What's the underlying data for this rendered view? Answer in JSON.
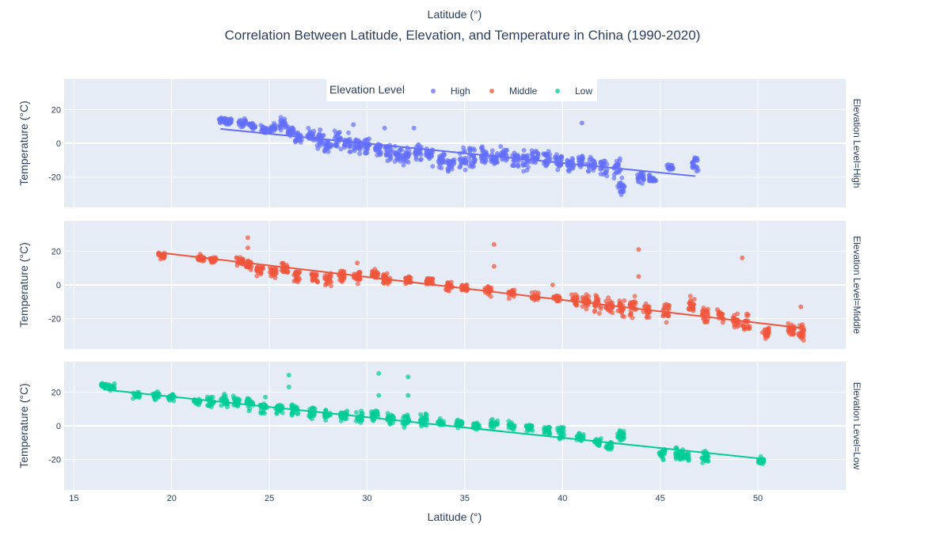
{
  "chart_data": {
    "type": "scatter",
    "title": "Correlation Between Latitude, Elevation, and Temperature in China (1990-2020)",
    "top_xlabel": "Latitude (°)",
    "xlabel": "Latitude (°)",
    "ylabel": "Temperature (°C)",
    "xlim": [
      14.5,
      54.5
    ],
    "xticks": [
      15,
      20,
      25,
      30,
      35,
      40,
      45,
      50
    ],
    "ylim": [
      -38,
      38
    ],
    "yticks": [
      -20,
      0,
      20
    ],
    "grid": true,
    "legend": {
      "title": "Elevation Level",
      "placement": "top-center",
      "entries": [
        "High",
        "Middle",
        "Low"
      ]
    },
    "colors": {
      "High": "#636efa",
      "Middle": "#EF553B",
      "Low": "#00cc96"
    },
    "facets": [
      {
        "label": "Elevation Level=High",
        "series_name": "High",
        "trend": {
          "x": [
            22.5,
            46.8
          ],
          "y": [
            8.5,
            -19.5
          ]
        },
        "clusters": [
          {
            "x": 22.6,
            "y": 14,
            "s": 1.5
          },
          {
            "x": 22.9,
            "y": 13,
            "s": 1.5
          },
          {
            "x": 23.6,
            "y": 12,
            "s": 2
          },
          {
            "x": 24.1,
            "y": 10,
            "s": 2
          },
          {
            "x": 24.7,
            "y": 8,
            "s": 2
          },
          {
            "x": 25.2,
            "y": 9,
            "s": 2
          },
          {
            "x": 25.7,
            "y": 11,
            "s": 3
          },
          {
            "x": 26.1,
            "y": 7,
            "s": 2
          },
          {
            "x": 26.5,
            "y": 3,
            "s": 3
          },
          {
            "x": 27.1,
            "y": 5,
            "s": 3
          },
          {
            "x": 27.6,
            "y": 1,
            "s": 4
          },
          {
            "x": 28.0,
            "y": -2,
            "s": 3
          },
          {
            "x": 28.5,
            "y": 2,
            "s": 4
          },
          {
            "x": 29.0,
            "y": 0,
            "s": 4
          },
          {
            "x": 29.5,
            "y": -1,
            "s": 5
          },
          {
            "x": 30.0,
            "y": -2,
            "s": 4
          },
          {
            "x": 30.6,
            "y": -3,
            "s": 4
          },
          {
            "x": 31.1,
            "y": -5,
            "s": 4
          },
          {
            "x": 31.6,
            "y": -7,
            "s": 4
          },
          {
            "x": 32.0,
            "y": -8,
            "s": 4
          },
          {
            "x": 32.6,
            "y": -6,
            "s": 4
          },
          {
            "x": 33.2,
            "y": -8,
            "s": 5
          },
          {
            "x": 33.8,
            "y": -10,
            "s": 4
          },
          {
            "x": 34.3,
            "y": -12,
            "s": 4
          },
          {
            "x": 34.9,
            "y": -10,
            "s": 5
          },
          {
            "x": 35.4,
            "y": -8,
            "s": 5
          },
          {
            "x": 36.0,
            "y": -7,
            "s": 4
          },
          {
            "x": 36.5,
            "y": -9,
            "s": 4
          },
          {
            "x": 37.0,
            "y": -6,
            "s": 4
          },
          {
            "x": 37.6,
            "y": -9,
            "s": 5
          },
          {
            "x": 38.1,
            "y": -10,
            "s": 5
          },
          {
            "x": 38.6,
            "y": -8,
            "s": 4
          },
          {
            "x": 39.2,
            "y": -10,
            "s": 4
          },
          {
            "x": 39.8,
            "y": -11,
            "s": 4
          },
          {
            "x": 40.4,
            "y": -12,
            "s": 4
          },
          {
            "x": 41.0,
            "y": -11,
            "s": 4
          },
          {
            "x": 41.5,
            "y": -13,
            "s": 4
          },
          {
            "x": 42.1,
            "y": -14,
            "s": 4
          },
          {
            "x": 42.8,
            "y": -15,
            "s": 4
          },
          {
            "x": 43.0,
            "y": -26,
            "s": 4
          },
          {
            "x": 44.0,
            "y": -20,
            "s": 3
          },
          {
            "x": 44.6,
            "y": -21,
            "s": 2
          },
          {
            "x": 45.5,
            "y": -14,
            "s": 2
          },
          {
            "x": 46.8,
            "y": -12,
            "s": 3
          }
        ],
        "outliers": [
          {
            "x": 41.0,
            "y": 12
          },
          {
            "x": 30.9,
            "y": 9
          },
          {
            "x": 32.4,
            "y": 9
          },
          {
            "x": 29.3,
            "y": 11
          },
          {
            "x": 27.6,
            "y": 8
          }
        ]
      },
      {
        "label": "Elevation Level=Middle",
        "series_name": "Middle",
        "trend": {
          "x": [
            19.5,
            52.2
          ],
          "y": [
            19,
            -25.5
          ]
        },
        "clusters": [
          {
            "x": 19.5,
            "y": 17,
            "s": 2
          },
          {
            "x": 21.5,
            "y": 16,
            "s": 1.5
          },
          {
            "x": 22.1,
            "y": 15,
            "s": 1.5
          },
          {
            "x": 23.5,
            "y": 14,
            "s": 2
          },
          {
            "x": 24.0,
            "y": 12,
            "s": 2
          },
          {
            "x": 24.5,
            "y": 9,
            "s": 3
          },
          {
            "x": 25.2,
            "y": 8,
            "s": 3
          },
          {
            "x": 25.8,
            "y": 9,
            "s": 3
          },
          {
            "x": 26.4,
            "y": 6,
            "s": 3
          },
          {
            "x": 27.3,
            "y": 5,
            "s": 3
          },
          {
            "x": 28.0,
            "y": 4,
            "s": 3
          },
          {
            "x": 28.7,
            "y": 6,
            "s": 3
          },
          {
            "x": 29.5,
            "y": 5,
            "s": 3
          },
          {
            "x": 30.4,
            "y": 6,
            "s": 3
          },
          {
            "x": 31.0,
            "y": 4,
            "s": 3
          },
          {
            "x": 32.1,
            "y": 3,
            "s": 2
          },
          {
            "x": 33.2,
            "y": 2,
            "s": 2
          },
          {
            "x": 34.2,
            "y": -1,
            "s": 2
          },
          {
            "x": 35.0,
            "y": -2,
            "s": 2
          },
          {
            "x": 36.2,
            "y": -3,
            "s": 3
          },
          {
            "x": 37.4,
            "y": -5,
            "s": 2
          },
          {
            "x": 38.6,
            "y": -7,
            "s": 2
          },
          {
            "x": 39.7,
            "y": -8,
            "s": 2
          },
          {
            "x": 40.6,
            "y": -9,
            "s": 3
          },
          {
            "x": 41.2,
            "y": -10,
            "s": 4
          },
          {
            "x": 41.8,
            "y": -11,
            "s": 4
          },
          {
            "x": 42.4,
            "y": -12,
            "s": 4
          },
          {
            "x": 43.0,
            "y": -14,
            "s": 4
          },
          {
            "x": 43.6,
            "y": -13,
            "s": 5
          },
          {
            "x": 44.3,
            "y": -15,
            "s": 4
          },
          {
            "x": 45.3,
            "y": -16,
            "s": 4
          },
          {
            "x": 46.6,
            "y": -12,
            "s": 4
          },
          {
            "x": 47.3,
            "y": -18,
            "s": 4
          },
          {
            "x": 48.1,
            "y": -19,
            "s": 4
          },
          {
            "x": 48.9,
            "y": -21,
            "s": 4
          },
          {
            "x": 49.4,
            "y": -22,
            "s": 4
          },
          {
            "x": 50.4,
            "y": -28,
            "s": 3
          },
          {
            "x": 51.7,
            "y": -26,
            "s": 3
          },
          {
            "x": 52.2,
            "y": -28,
            "s": 4
          }
        ],
        "outliers": [
          {
            "x": 23.9,
            "y": 28
          },
          {
            "x": 23.9,
            "y": 22
          },
          {
            "x": 36.5,
            "y": 24
          },
          {
            "x": 36.5,
            "y": 11
          },
          {
            "x": 43.9,
            "y": 21
          },
          {
            "x": 43.9,
            "y": 5
          },
          {
            "x": 49.2,
            "y": 16
          },
          {
            "x": 52.2,
            "y": -13
          },
          {
            "x": 29.5,
            "y": 13
          },
          {
            "x": 39.5,
            "y": 0
          }
        ]
      },
      {
        "label": "Elevation Level=Low",
        "series_name": "Low",
        "trend": {
          "x": [
            16.5,
            50.2
          ],
          "y": [
            21.5,
            -19.5
          ]
        },
        "clusters": [
          {
            "x": 16.5,
            "y": 24,
            "s": 1
          },
          {
            "x": 16.9,
            "y": 23,
            "s": 1.5
          },
          {
            "x": 18.2,
            "y": 18,
            "s": 1.5
          },
          {
            "x": 19.2,
            "y": 18,
            "s": 2
          },
          {
            "x": 20.0,
            "y": 17,
            "s": 1.5
          },
          {
            "x": 21.3,
            "y": 15,
            "s": 2
          },
          {
            "x": 22.0,
            "y": 14,
            "s": 3
          },
          {
            "x": 22.7,
            "y": 15,
            "s": 3
          },
          {
            "x": 23.3,
            "y": 14,
            "s": 3
          },
          {
            "x": 24.0,
            "y": 13,
            "s": 3
          },
          {
            "x": 24.7,
            "y": 11,
            "s": 3
          },
          {
            "x": 25.5,
            "y": 10,
            "s": 3
          },
          {
            "x": 26.3,
            "y": 9,
            "s": 3
          },
          {
            "x": 27.2,
            "y": 8,
            "s": 3
          },
          {
            "x": 28.0,
            "y": 7,
            "s": 3
          },
          {
            "x": 28.8,
            "y": 6,
            "s": 3
          },
          {
            "x": 29.6,
            "y": 5,
            "s": 3
          },
          {
            "x": 30.4,
            "y": 6,
            "s": 3
          },
          {
            "x": 31.2,
            "y": 4,
            "s": 3
          },
          {
            "x": 32.0,
            "y": 3,
            "s": 3
          },
          {
            "x": 32.9,
            "y": 3,
            "s": 3
          },
          {
            "x": 33.8,
            "y": 2,
            "s": 2
          },
          {
            "x": 34.7,
            "y": 1,
            "s": 2
          },
          {
            "x": 35.6,
            "y": 0,
            "s": 2
          },
          {
            "x": 36.5,
            "y": 1,
            "s": 2
          },
          {
            "x": 37.4,
            "y": 0,
            "s": 2
          },
          {
            "x": 38.3,
            "y": -1,
            "s": 2
          },
          {
            "x": 39.2,
            "y": -3,
            "s": 2
          },
          {
            "x": 39.9,
            "y": -4,
            "s": 3
          },
          {
            "x": 40.9,
            "y": -7,
            "s": 2
          },
          {
            "x": 41.8,
            "y": -9,
            "s": 2
          },
          {
            "x": 42.4,
            "y": -12,
            "s": 2
          },
          {
            "x": 43.0,
            "y": -6,
            "s": 2
          },
          {
            "x": 45.1,
            "y": -16,
            "s": 3
          },
          {
            "x": 45.9,
            "y": -17,
            "s": 3
          },
          {
            "x": 46.3,
            "y": -18,
            "s": 3
          },
          {
            "x": 47.3,
            "y": -18,
            "s": 3
          },
          {
            "x": 50.2,
            "y": -21,
            "s": 2
          }
        ],
        "outliers": [
          {
            "x": 26.0,
            "y": 30
          },
          {
            "x": 26.0,
            "y": 23
          },
          {
            "x": 30.6,
            "y": 31
          },
          {
            "x": 30.6,
            "y": 18
          },
          {
            "x": 32.1,
            "y": 29
          },
          {
            "x": 32.1,
            "y": 18
          },
          {
            "x": 24.8,
            "y": 17
          }
        ]
      }
    ]
  }
}
